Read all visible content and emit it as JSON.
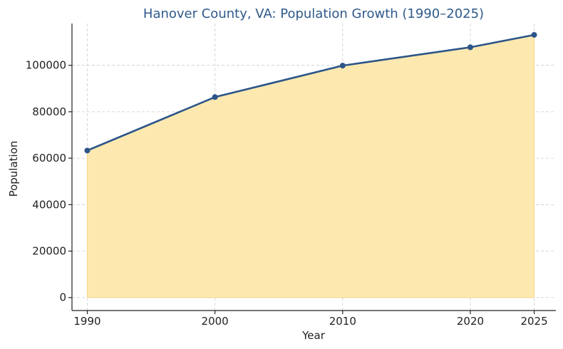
{
  "chart_data": {
    "type": "area",
    "title": "Hanover County, VA: Population Growth (1990–2025)",
    "xlabel": "Year",
    "ylabel": "Population",
    "x": [
      1990,
      2000,
      2010,
      2020,
      2025
    ],
    "series": [
      {
        "values": [
          63306,
          86320,
          99863,
          107766,
          113100
        ]
      }
    ],
    "xticks": [
      1990,
      2000,
      2010,
      2020,
      2025
    ],
    "yticks": [
      0,
      20000,
      40000,
      60000,
      80000,
      100000
    ],
    "xlim": [
      1988.8,
      2026.7
    ],
    "ylim": [
      -5600,
      118000
    ],
    "grid": true,
    "colors": {
      "title": "#2f5a8a",
      "line": "#2c5589",
      "fill": "#fde9b0",
      "fill_edge": "#f4d68a"
    }
  }
}
